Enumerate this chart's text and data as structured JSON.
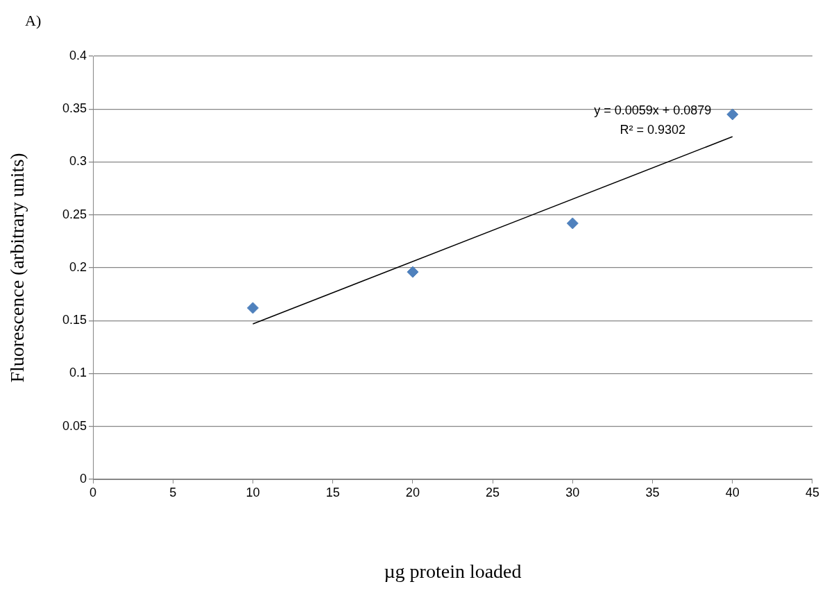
{
  "chart_data": {
    "type": "scatter",
    "title": "A)",
    "xlabel": "µg protein loaded",
    "ylabel": "Fluorescence (arbitrary units)",
    "x": [
      10,
      20,
      30,
      40
    ],
    "series": [
      {
        "color": "#4f81bd",
        "values": [
          0.162,
          0.196,
          0.242,
          0.345
        ],
        "marker": "diamond"
      },
      {
        "type": "line",
        "x": [
          10,
          40
        ],
        "values": [
          0.1469,
          0.3239
        ],
        "color": "#000000",
        "marker": "none"
      }
    ],
    "xlim": [
      0,
      45
    ],
    "xticks": [
      0,
      5,
      10,
      15,
      20,
      25,
      30,
      35,
      40,
      45
    ],
    "ylim": [
      0,
      0.4
    ],
    "yticks": [
      0,
      0.05,
      0.1,
      0.15,
      0.2,
      0.25,
      0.3,
      0.35,
      0.4
    ],
    "grid": "y",
    "legend": false,
    "annotations": [
      "y = 0.0059x + 0.0879",
      "R² = 0.9302"
    ]
  }
}
